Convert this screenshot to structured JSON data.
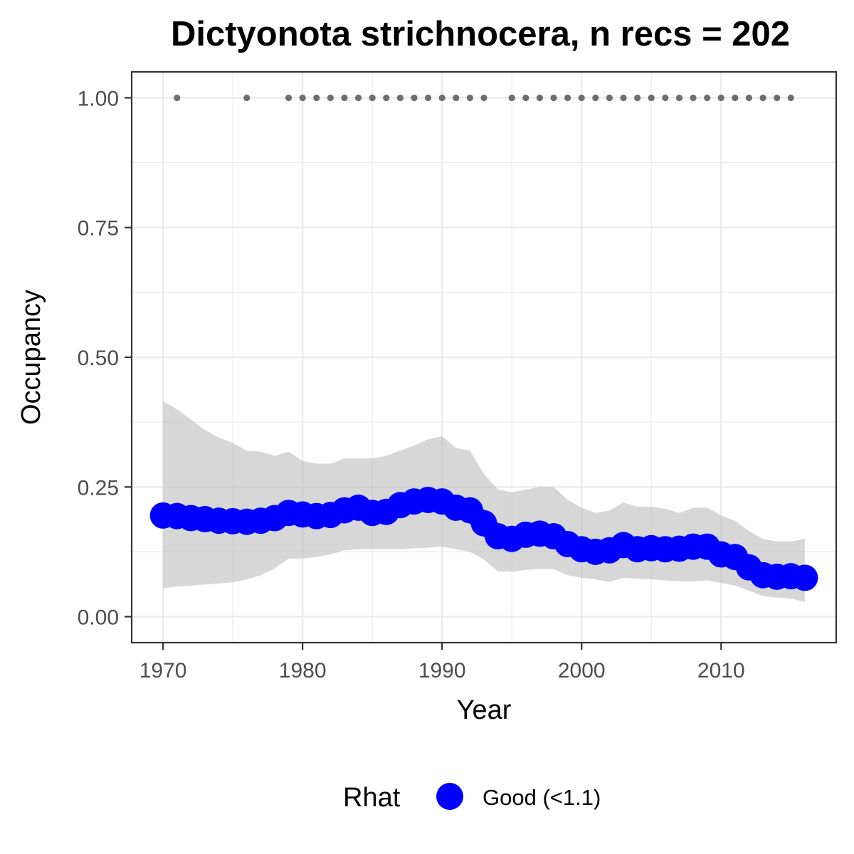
{
  "chart_data": {
    "type": "line",
    "title": "Dictyonota strichnocera, n recs = 202",
    "xlabel": "Year",
    "ylabel": "Occupancy",
    "xlim": [
      1967.75,
      2018.25
    ],
    "ylim": [
      -0.05,
      1.05
    ],
    "x_ticks": [
      1970,
      1980,
      1990,
      2000,
      2010
    ],
    "x_tick_labels": [
      "1970",
      "1980",
      "1990",
      "2000",
      "2010"
    ],
    "y_ticks": [
      0,
      0.25,
      0.5,
      0.75,
      1
    ],
    "y_tick_labels": [
      "0.00",
      "0.25",
      "0.50",
      "0.75",
      "1.00"
    ],
    "grid": true,
    "legend": {
      "title": "Rhat",
      "placement": "bottom",
      "entries": [
        {
          "label": "Good (<1.1)",
          "color": "#0000ff"
        }
      ]
    },
    "colors": {
      "series": "#0000ff",
      "ribbon": "#bebebe",
      "records": "#6e6e6e",
      "grid": "#ebebeb",
      "panel_border": "#333333"
    },
    "x": [
      1970,
      1971,
      1972,
      1973,
      1974,
      1975,
      1976,
      1977,
      1978,
      1979,
      1980,
      1981,
      1982,
      1983,
      1984,
      1985,
      1986,
      1987,
      1988,
      1989,
      1990,
      1991,
      1992,
      1993,
      1994,
      1995,
      1996,
      1997,
      1998,
      1999,
      2000,
      2001,
      2002,
      2003,
      2004,
      2005,
      2006,
      2007,
      2008,
      2009,
      2010,
      2011,
      2012,
      2013,
      2014,
      2015,
      2016
    ],
    "series": [
      {
        "name": "Good (<1.1)",
        "values": [
          0.195,
          0.194,
          0.19,
          0.188,
          0.185,
          0.184,
          0.183,
          0.185,
          0.19,
          0.2,
          0.197,
          0.194,
          0.196,
          0.205,
          0.21,
          0.2,
          0.202,
          0.215,
          0.222,
          0.225,
          0.222,
          0.21,
          0.205,
          0.18,
          0.155,
          0.15,
          0.158,
          0.16,
          0.155,
          0.14,
          0.13,
          0.125,
          0.128,
          0.138,
          0.13,
          0.132,
          0.13,
          0.131,
          0.135,
          0.135,
          0.12,
          0.115,
          0.095,
          0.08,
          0.077,
          0.078,
          0.075
        ]
      }
    ],
    "ribbon": {
      "lower": [
        0.055,
        0.058,
        0.06,
        0.062,
        0.064,
        0.066,
        0.072,
        0.08,
        0.093,
        0.112,
        0.112,
        0.115,
        0.12,
        0.128,
        0.13,
        0.13,
        0.13,
        0.13,
        0.132,
        0.133,
        0.135,
        0.13,
        0.125,
        0.11,
        0.087,
        0.087,
        0.09,
        0.092,
        0.092,
        0.08,
        0.075,
        0.072,
        0.067,
        0.075,
        0.073,
        0.072,
        0.07,
        0.068,
        0.068,
        0.07,
        0.065,
        0.06,
        0.05,
        0.04,
        0.037,
        0.035,
        0.028
      ],
      "upper": [
        0.415,
        0.4,
        0.38,
        0.36,
        0.345,
        0.335,
        0.32,
        0.318,
        0.31,
        0.318,
        0.3,
        0.295,
        0.295,
        0.305,
        0.305,
        0.305,
        0.31,
        0.32,
        0.33,
        0.342,
        0.348,
        0.325,
        0.32,
        0.275,
        0.245,
        0.24,
        0.245,
        0.25,
        0.25,
        0.225,
        0.21,
        0.2,
        0.205,
        0.22,
        0.212,
        0.212,
        0.208,
        0.2,
        0.21,
        0.21,
        0.195,
        0.185,
        0.165,
        0.15,
        0.145,
        0.145,
        0.15
      ]
    },
    "records": {
      "y": 1,
      "years": [
        1971,
        1976,
        1979,
        1980,
        1981,
        1982,
        1983,
        1984,
        1985,
        1986,
        1987,
        1988,
        1989,
        1990,
        1991,
        1992,
        1993,
        1995,
        1996,
        1997,
        1998,
        1999,
        2000,
        2001,
        2002,
        2003,
        2004,
        2005,
        2006,
        2007,
        2008,
        2009,
        2010,
        2011,
        2012,
        2013,
        2014,
        2015
      ]
    }
  }
}
